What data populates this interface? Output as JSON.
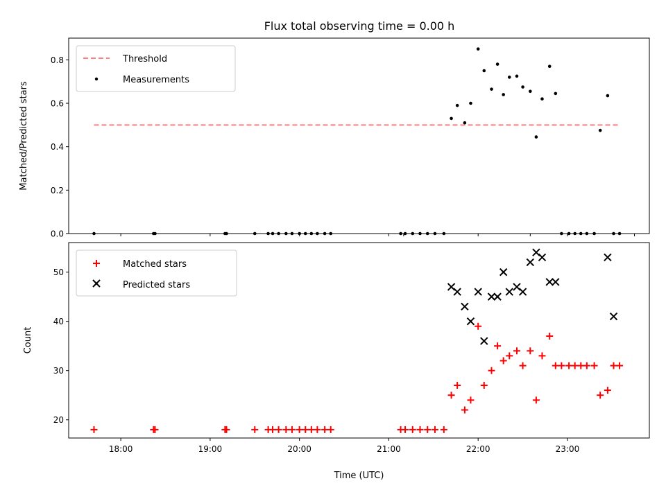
{
  "chart_data": [
    {
      "type": "scatter",
      "title": "Flux total observing time = 0.00 h",
      "ylabel": "Matched/Predicted stars",
      "ylim": [
        0,
        0.9
      ],
      "yticks": [
        "0.0",
        "0.2",
        "0.4",
        "0.6",
        "0.8"
      ],
      "xlim": [
        "17:25",
        "23:55"
      ],
      "legend": {
        "placement": "top-left",
        "entries": [
          "Threshold",
          "Measurements"
        ]
      },
      "threshold": {
        "name": "Threshold",
        "value": 0.5,
        "x_start": "17:42",
        "x_end": "23:35",
        "color": "#ff7f7f"
      },
      "series": [
        {
          "name": "Measurements",
          "x": [
            "17:42",
            "18:22",
            "18:23",
            "19:10",
            "19:11",
            "19:30",
            "19:39",
            "19:42",
            "19:46",
            "19:51",
            "19:55",
            "20:00",
            "20:04",
            "20:08",
            "20:12",
            "20:17",
            "20:21",
            "21:08",
            "21:11",
            "21:16",
            "21:21",
            "21:26",
            "21:31",
            "21:37",
            "21:42",
            "21:46",
            "21:51",
            "21:55",
            "22:00",
            "22:04",
            "22:09",
            "22:13",
            "22:17",
            "22:21",
            "22:26",
            "22:30",
            "22:35",
            "22:39",
            "22:43",
            "22:48",
            "22:52",
            "22:56",
            "23:01",
            "23:05",
            "23:09",
            "23:13",
            "23:18",
            "23:22",
            "23:27",
            "23:31",
            "23:35"
          ],
          "y": [
            0,
            0,
            0,
            0,
            0,
            0,
            0,
            0,
            0,
            0,
            0,
            0,
            0,
            0,
            0,
            0,
            0,
            0,
            0,
            0,
            0,
            0,
            0,
            0,
            0.53,
            0.59,
            0.51,
            0.6,
            0.85,
            0.75,
            0.665,
            0.78,
            0.64,
            0.72,
            0.725,
            0.675,
            0.655,
            0.445,
            0.62,
            0.77,
            0.645,
            0,
            0,
            0,
            0,
            0,
            0,
            0.475,
            0.635,
            0,
            0
          ],
          "color": "#000000"
        }
      ]
    },
    {
      "type": "scatter",
      "xlabel": "Time (UTC)",
      "ylabel": "Count",
      "ylim": [
        16.3,
        56
      ],
      "yticks": [
        "20",
        "30",
        "40",
        "50"
      ],
      "xticks": [
        "18:00",
        "19:00",
        "20:00",
        "21:00",
        "22:00",
        "23:00"
      ],
      "xlim": [
        "17:25",
        "23:55"
      ],
      "legend": {
        "placement": "top-left",
        "entries": [
          "Matched stars",
          "Predicted stars"
        ]
      },
      "series": [
        {
          "name": "Matched stars",
          "marker": "plus",
          "color": "#ff0000",
          "x": [
            "17:42",
            "18:22",
            "18:23",
            "19:10",
            "19:11",
            "19:30",
            "19:39",
            "19:42",
            "19:46",
            "19:51",
            "19:55",
            "20:00",
            "20:04",
            "20:08",
            "20:12",
            "20:17",
            "20:21",
            "21:08",
            "21:11",
            "21:16",
            "21:21",
            "21:26",
            "21:31",
            "21:37",
            "21:42",
            "21:46",
            "21:51",
            "21:55",
            "22:00",
            "22:04",
            "22:09",
            "22:13",
            "22:17",
            "22:21",
            "22:26",
            "22:30",
            "22:35",
            "22:39",
            "22:43",
            "22:48",
            "22:52",
            "22:56",
            "23:01",
            "23:05",
            "23:09",
            "23:13",
            "23:18",
            "23:22",
            "23:27",
            "23:31",
            "23:35"
          ],
          "y": [
            18,
            18,
            18,
            18,
            18,
            18,
            18,
            18,
            18,
            18,
            18,
            18,
            18,
            18,
            18,
            18,
            18,
            18,
            18,
            18,
            18,
            18,
            18,
            18,
            25,
            27,
            22,
            24,
            39,
            27,
            30,
            35,
            32,
            33,
            34,
            31,
            34,
            24,
            33,
            37,
            31,
            31,
            31,
            31,
            31,
            31,
            31,
            25,
            26,
            31,
            31
          ]
        },
        {
          "name": "Predicted stars",
          "marker": "x",
          "color": "#000000",
          "x": [
            "21:42",
            "21:46",
            "21:51",
            "21:55",
            "22:00",
            "22:04",
            "22:09",
            "22:13",
            "22:17",
            "22:21",
            "22:26",
            "22:30",
            "22:35",
            "22:39",
            "22:43",
            "22:48",
            "22:52",
            "23:27",
            "23:31"
          ],
          "y": [
            47,
            46,
            43,
            40,
            46,
            36,
            45,
            45,
            50,
            46,
            47,
            46,
            52,
            54,
            53,
            48,
            48,
            53,
            41
          ]
        }
      ]
    }
  ]
}
